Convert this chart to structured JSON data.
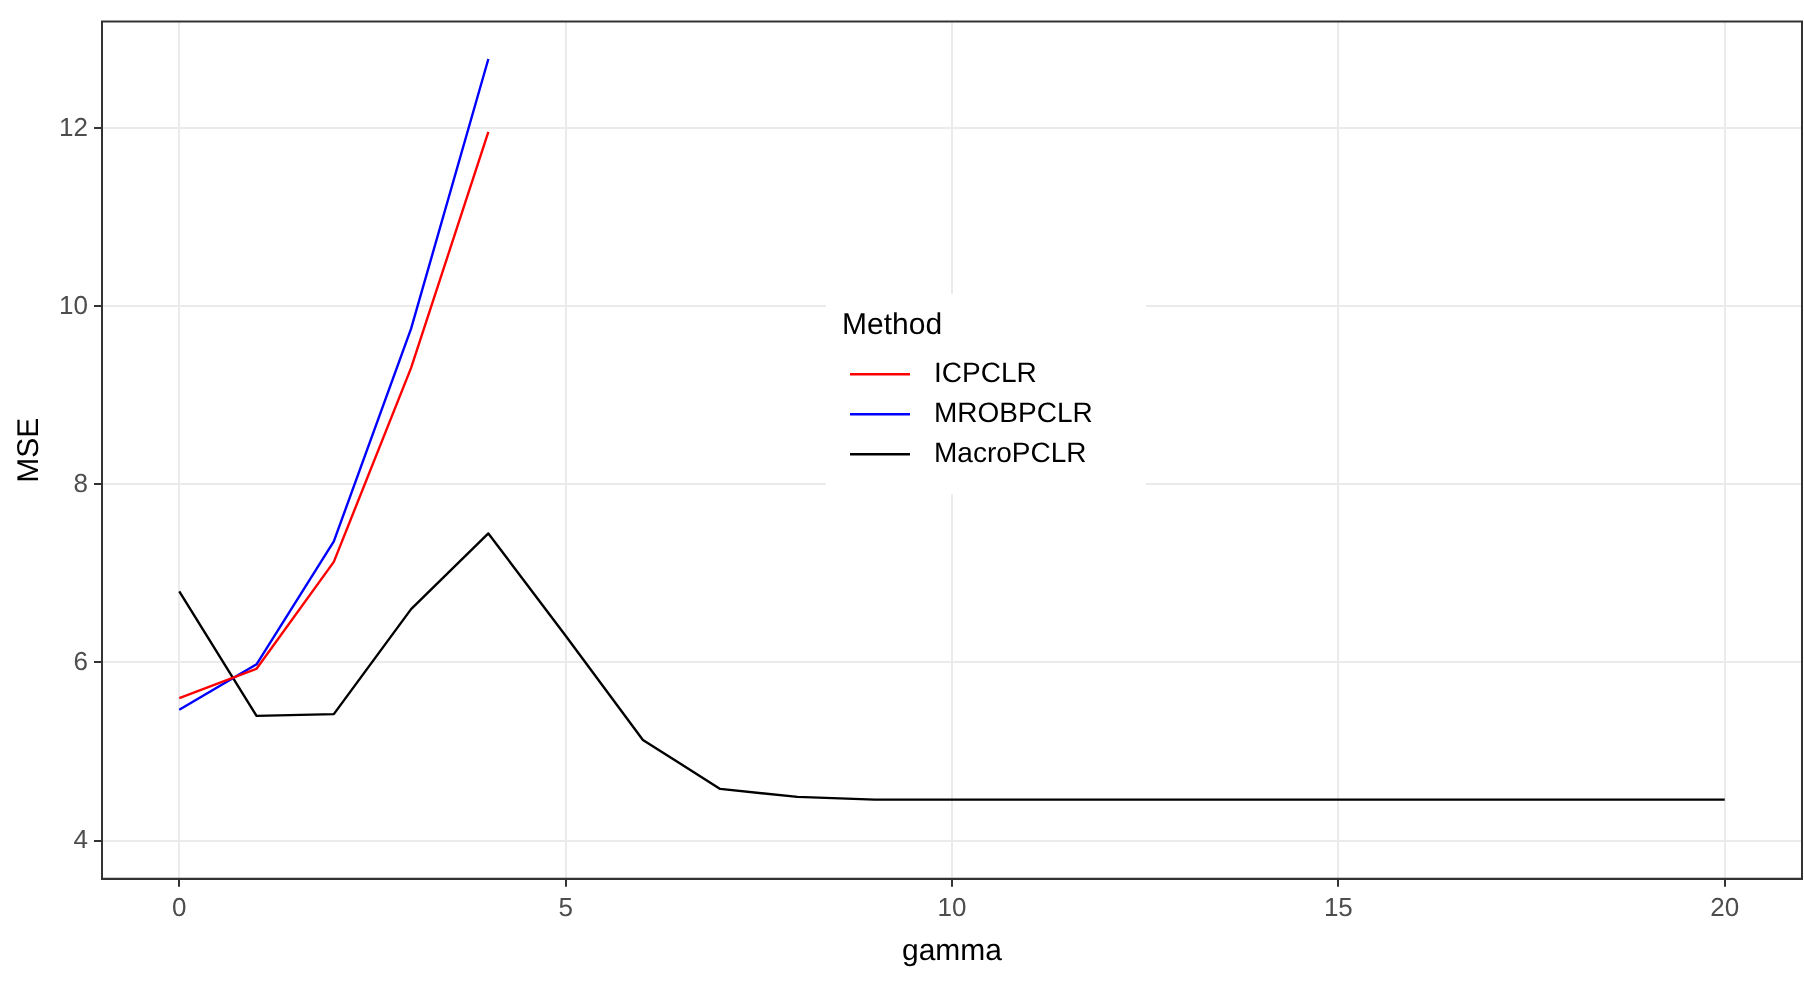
{
  "chart_data": {
    "type": "line",
    "xlabel": "gamma",
    "ylabel": "MSE",
    "legend_title": "Method",
    "x": [
      0,
      1,
      2,
      3,
      4,
      5,
      6,
      7,
      8,
      9,
      10,
      11,
      12,
      13,
      14,
      15,
      16,
      17,
      18,
      19,
      20
    ],
    "series": [
      {
        "name": "ICPCLR",
        "color": "#ff0000",
        "x": [
          0,
          1,
          2,
          3,
          4
        ],
        "values": [
          5.6,
          5.93,
          7.13,
          9.31,
          11.96
        ]
      },
      {
        "name": "MROBPCLR",
        "color": "#0000ff",
        "x": [
          0,
          1,
          2,
          3,
          4
        ],
        "values": [
          5.47,
          5.98,
          7.36,
          9.75,
          12.78
        ]
      },
      {
        "name": "MacroPCLR",
        "color": "#000000",
        "values": [
          6.8,
          5.4,
          5.42,
          6.6,
          7.45,
          6.3,
          5.13,
          4.58,
          4.49,
          4.46,
          4.46,
          4.46,
          4.46,
          4.46,
          4.46,
          4.46,
          4.46,
          4.46,
          4.46,
          4.46,
          4.46
        ]
      }
    ],
    "xlim": [
      -1,
      21
    ],
    "xticks": [
      0,
      5,
      10,
      15,
      20
    ],
    "ylim": [
      3.57,
      13.2
    ],
    "yticks": [
      4,
      6,
      8,
      10,
      12
    ],
    "grid": true,
    "legend": "center",
    "marker": "none",
    "line_style": "solid"
  }
}
